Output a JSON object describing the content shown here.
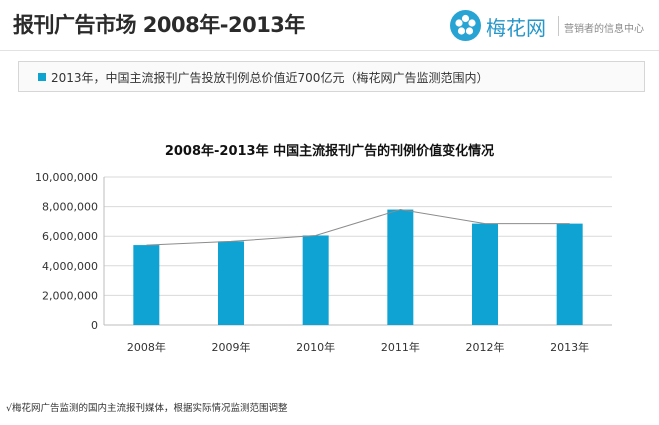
{
  "header": {
    "title": "报刊广告市场  2008年-2013年",
    "logo_text": "梅花网",
    "logo_slogan": "营销者的信息中心"
  },
  "note": {
    "text": "2013年，中国主流报刊广告投放刊例总价值近700亿元（梅花网广告监测范围内）"
  },
  "chart_data": {
    "type": "bar",
    "title": "2008年-2013年 中国主流报刊广告的刊例价值变化情况",
    "categories": [
      "2008年",
      "2009年",
      "2010年",
      "2011年",
      "2012年",
      "2013年"
    ],
    "values": [
      5400000,
      5650000,
      6050000,
      7800000,
      6850000,
      6850000
    ],
    "overlay_line": true,
    "ylim": [
      0,
      10000000
    ],
    "yticks": [
      "0",
      "2,000,000",
      "4,000,000",
      "6,000,000",
      "8,000,000",
      "10,000,000"
    ],
    "ytick_values": [
      0,
      2000000,
      4000000,
      6000000,
      8000000,
      10000000
    ],
    "grid": true,
    "colors": {
      "bar": "#0ea3d2",
      "line": "#8c8c8c",
      "grid": "#d9d9d9"
    }
  },
  "footnote": "√梅花网广告监测的国内主流报刊媒体，根据实际情况监测范围调整"
}
